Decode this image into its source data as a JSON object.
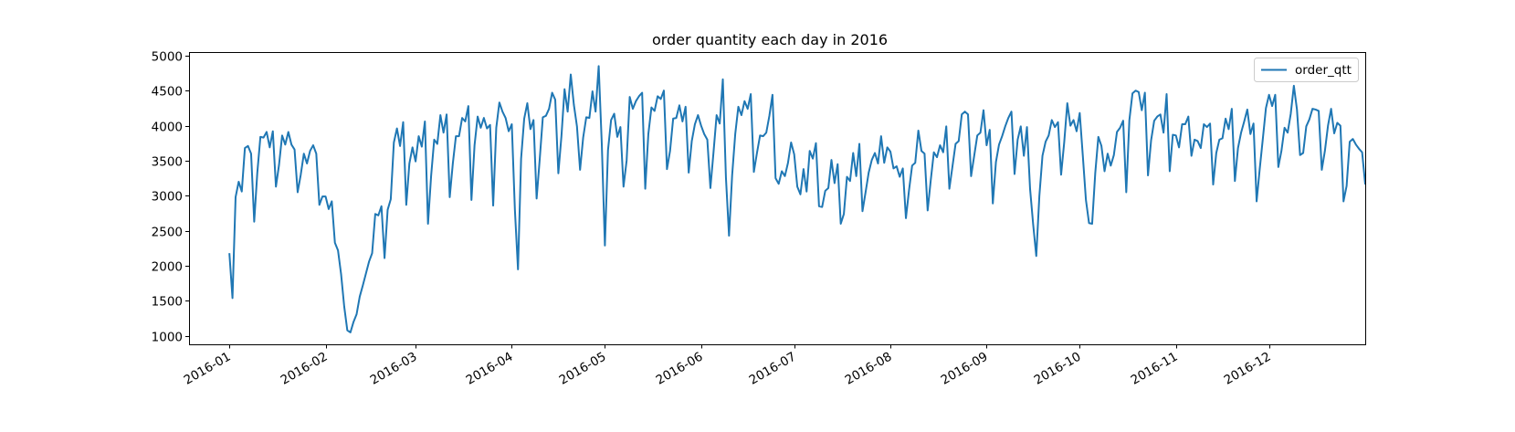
{
  "chart_data": {
    "type": "line",
    "title": "order quantity each day in 2016",
    "xlabel": "",
    "ylabel": "",
    "xlim": [
      "2015-12-19",
      "2017-01-01"
    ],
    "ylim": [
      880,
      5050
    ],
    "y_ticks": [
      1000,
      1500,
      2000,
      2500,
      3000,
      3500,
      4000,
      4500,
      5000
    ],
    "x_ticks": [
      "2016-01",
      "2016-02",
      "2016-03",
      "2016-04",
      "2016-05",
      "2016-06",
      "2016-07",
      "2016-08",
      "2016-09",
      "2016-10",
      "2016-11",
      "2016-12"
    ],
    "grid": false,
    "legend_position": "top-right",
    "series": [
      {
        "name": "order_qtt",
        "color": "#1f77b4",
        "start_date": "2016-01-01",
        "values": [
          2180,
          1540,
          2980,
          3200,
          3060,
          3680,
          3710,
          3600,
          2630,
          3330,
          3840,
          3830,
          3910,
          3690,
          3920,
          3130,
          3440,
          3860,
          3730,
          3910,
          3730,
          3660,
          3050,
          3300,
          3600,
          3460,
          3640,
          3720,
          3600,
          2870,
          2990,
          2990,
          2810,
          2920,
          2330,
          2220,
          1880,
          1420,
          1080,
          1050,
          1200,
          1310,
          1560,
          1720,
          1890,
          2060,
          2180,
          2740,
          2720,
          2850,
          2110,
          2800,
          2950,
          3760,
          3960,
          3710,
          4050,
          2870,
          3460,
          3690,
          3490,
          3850,
          3700,
          4060,
          2600,
          3280,
          3800,
          3740,
          4150,
          3900,
          4160,
          2980,
          3460,
          3850,
          3850,
          4110,
          4060,
          4280,
          2940,
          3720,
          4130,
          3970,
          4110,
          3960,
          4010,
          2860,
          3970,
          4330,
          4200,
          4110,
          3920,
          4020,
          2800,
          1950,
          3530,
          4100,
          4320,
          3950,
          4080,
          2960,
          3520,
          4120,
          4140,
          4240,
          4470,
          4370,
          3320,
          3850,
          4520,
          4200,
          4730,
          4300,
          3990,
          3370,
          3830,
          4120,
          4110,
          4490,
          4200,
          4850,
          3740,
          2290,
          3650,
          4080,
          4170,
          3840,
          3980,
          3130,
          3500,
          4410,
          4240,
          4350,
          4420,
          4470,
          3100,
          3880,
          4260,
          4210,
          4420,
          4380,
          4500,
          3380,
          3640,
          4100,
          4110,
          4290,
          4060,
          4270,
          3330,
          3780,
          4020,
          4150,
          4000,
          3880,
          3800,
          3110,
          3620,
          4150,
          4030,
          4660,
          3260,
          2430,
          3290,
          3880,
          4270,
          4150,
          4350,
          4240,
          4450,
          3340,
          3610,
          3860,
          3850,
          3900,
          4140,
          4440,
          3250,
          3170,
          3350,
          3280,
          3470,
          3760,
          3590,
          3130,
          3020,
          3380,
          3060,
          3640,
          3530,
          3750,
          2850,
          2840,
          3070,
          3110,
          3510,
          3180,
          3450,
          2600,
          2740,
          3270,
          3210,
          3610,
          3280,
          3740,
          2780,
          3050,
          3330,
          3510,
          3610,
          3460,
          3850,
          3470,
          3690,
          3630,
          3390,
          3420,
          3270,
          3390,
          2680,
          3080,
          3430,
          3470,
          3930,
          3640,
          3600,
          2790,
          3220,
          3620,
          3550,
          3720,
          3620,
          3990,
          3100,
          3420,
          3740,
          3780,
          4160,
          4200,
          4160,
          3280,
          3570,
          3860,
          3900,
          4220,
          3720,
          3940,
          2890,
          3480,
          3730,
          3850,
          3990,
          4110,
          4200,
          3310,
          3800,
          3990,
          3570,
          3980,
          3100,
          2590,
          2140,
          3000,
          3570,
          3770,
          3860,
          4080,
          3980,
          4050,
          3300,
          3760,
          4320,
          4000,
          4080,
          3920,
          4180,
          3570,
          2940,
          2610,
          2600,
          3320,
          3840,
          3710,
          3350,
          3600,
          3430,
          3580,
          3910,
          3970,
          4070,
          3050,
          4080,
          4460,
          4500,
          4480,
          4220,
          4470,
          3290,
          3790,
          4070,
          4130,
          4160,
          3900,
          4450,
          3350,
          3870,
          3860,
          3690,
          4020,
          4020,
          4130,
          3570,
          3800,
          3780,
          3680,
          4020,
          3980,
          4030,
          3160,
          3610,
          3800,
          3820,
          4100,
          3950,
          4240,
          3210,
          3680,
          3900,
          4060,
          4230,
          3880,
          4030,
          2920,
          3380,
          3810,
          4250,
          4440,
          4280,
          4440,
          3410,
          3640,
          3970,
          3900,
          4170,
          4570,
          4230,
          3580,
          3610,
          3990,
          4090,
          4240,
          4230,
          4210,
          3370,
          3640,
          4000,
          4240,
          3890,
          4040,
          4000,
          2920,
          3140,
          3770,
          3810,
          3730,
          3670,
          3620,
          3160
        ]
      }
    ]
  }
}
